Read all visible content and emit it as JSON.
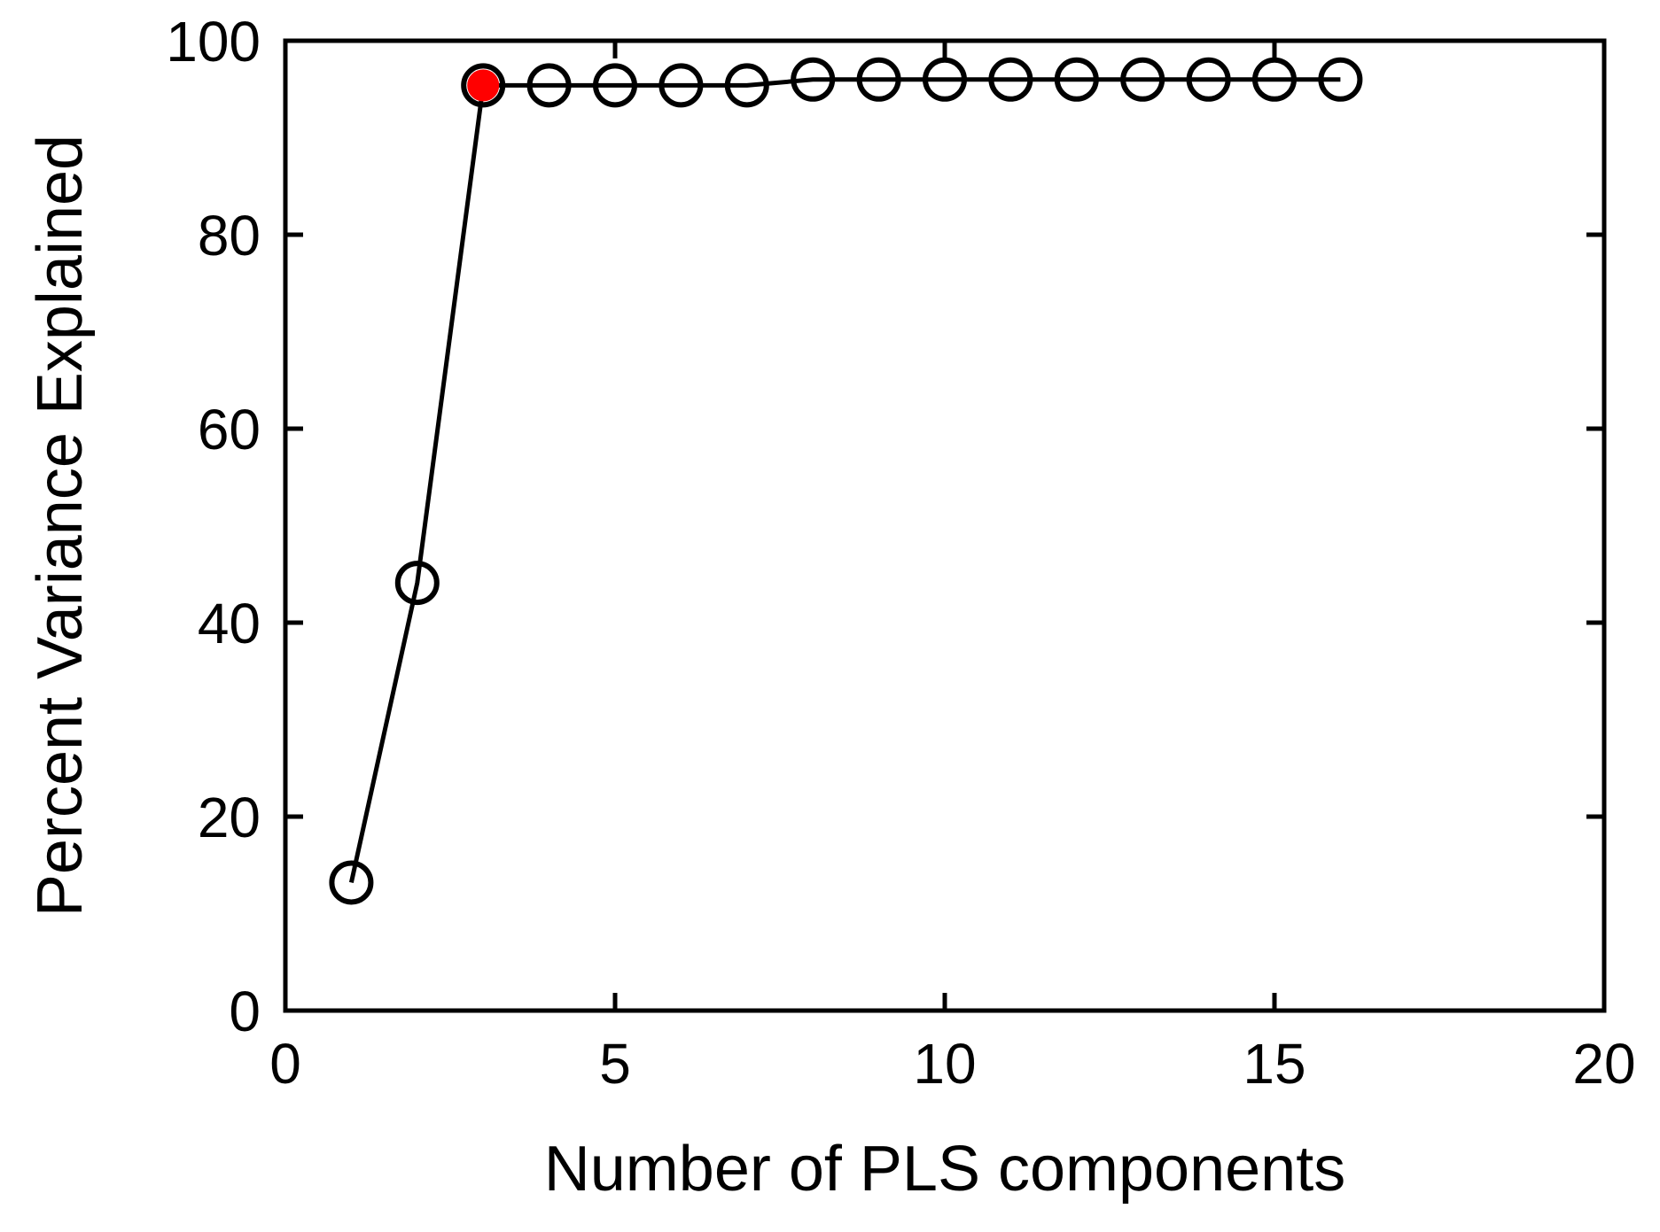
{
  "chart_data": {
    "type": "line",
    "title": "",
    "xlabel": "Number of PLS components",
    "ylabel": "Percent Variance Explained",
    "xlim": [
      0,
      20
    ],
    "ylim": [
      0,
      100
    ],
    "xticks": [
      0,
      5,
      10,
      15,
      20
    ],
    "yticks": [
      0,
      20,
      40,
      60,
      80,
      100
    ],
    "grid": false,
    "legend": "none",
    "series": [
      {
        "x": [
          1,
          2,
          3,
          4,
          5,
          6,
          7,
          8,
          9,
          10,
          11,
          12,
          13,
          14,
          15,
          16
        ],
        "y": [
          13.2,
          44.1,
          95.4,
          95.4,
          95.4,
          95.4,
          95.4,
          96.0,
          96.0,
          96.0,
          96.0,
          96.0,
          96.0,
          96.0,
          96.0,
          96.0
        ],
        "line_color": "#000000",
        "marker": "open-circle"
      }
    ],
    "highlight": {
      "x": 3,
      "y": 95.4,
      "color": "#ff0000",
      "marker": "filled-circle"
    }
  }
}
